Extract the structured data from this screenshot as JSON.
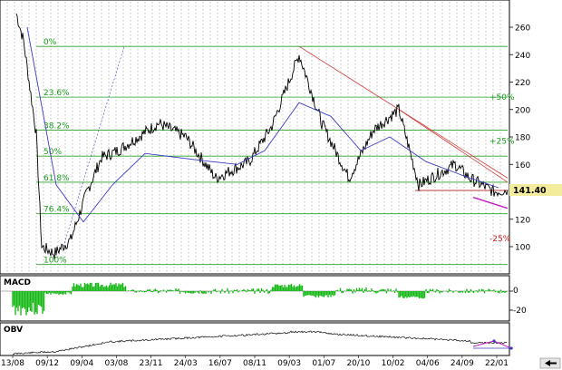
{
  "chart_data": {
    "type": "line",
    "last_price": "141.40",
    "price_axis": {
      "ticks": [
        "260",
        "240",
        "220",
        "200",
        "180",
        "160",
        "140",
        "120",
        "100"
      ]
    },
    "date_labels": [
      "13/08",
      "09/12",
      "09/04",
      "03/08",
      "23/11",
      "24/03",
      "16/07",
      "08/11",
      "09/03",
      "01/07",
      "20/10",
      "10/02",
      "04/06",
      "24/09",
      "22/01"
    ],
    "fib_levels": [
      {
        "label": "0%",
        "value": 246
      },
      {
        "label": "23.6%",
        "value": 209
      },
      {
        "label": "38.2%",
        "value": 185
      },
      {
        "label": "50%",
        "value": 166
      },
      {
        "label": "61.8%",
        "value": 147
      },
      {
        "label": "76.4%",
        "value": 124
      },
      {
        "label": "100%",
        "value": 87
      }
    ],
    "target_labels": [
      {
        "label": "+50%",
        "value": 209,
        "color": "#1a9a1a"
      },
      {
        "label": "+25%",
        "value": 177,
        "color": "#1a9a1a"
      },
      {
        "label": "-25%",
        "value": 106,
        "color": "#c81e1e"
      }
    ],
    "price_series": [
      {
        "date": "13/08",
        "value": 270
      },
      {
        "date": "early Sep",
        "value": 250
      },
      {
        "date": "late Oct",
        "value": 182
      },
      {
        "date": "mid Nov",
        "value": 100
      },
      {
        "date": "09/12",
        "value": 95
      },
      {
        "date": "late Jan",
        "value": 105
      },
      {
        "date": "09/04",
        "value": 140
      },
      {
        "date": "mid May",
        "value": 165
      },
      {
        "date": "03/08",
        "value": 170
      },
      {
        "date": "23/11",
        "value": 190
      },
      {
        "date": "mid Jan",
        "value": 180
      },
      {
        "date": "24/03",
        "value": 150
      },
      {
        "date": "16/07",
        "value": 162
      },
      {
        "date": "08/11",
        "value": 188
      },
      {
        "date": "09/03",
        "value": 240
      },
      {
        "date": "01/07",
        "value": 190
      },
      {
        "date": "20/10",
        "value": 150
      },
      {
        "date": "mid Dec",
        "value": 185
      },
      {
        "date": "10/02",
        "value": 200
      },
      {
        "date": "04/06",
        "value": 145
      },
      {
        "date": "24/09",
        "value": 160
      },
      {
        "date": "mid Nov",
        "value": 150
      },
      {
        "date": "22/01",
        "value": 140
      },
      {
        "date": "last",
        "value": 141.4
      }
    ],
    "moving_average": [
      {
        "date": "13/08",
        "value": 260
      },
      {
        "date": "09/12",
        "value": 145
      },
      {
        "date": "09/04",
        "value": 118
      },
      {
        "date": "03/08",
        "value": 145
      },
      {
        "date": "23/11",
        "value": 168
      },
      {
        "date": "24/03",
        "value": 163
      },
      {
        "date": "16/07",
        "value": 160
      },
      {
        "date": "08/11",
        "value": 170
      },
      {
        "date": "09/03",
        "value": 205
      },
      {
        "date": "01/07",
        "value": 195
      },
      {
        "date": "20/10",
        "value": 170
      },
      {
        "date": "10/02",
        "value": 180
      },
      {
        "date": "04/06",
        "value": 162
      },
      {
        "date": "24/09",
        "value": 152
      },
      {
        "date": "22/01",
        "value": 143
      }
    ],
    "macd": {
      "label": "MACD",
      "ticks": [
        "0",
        "-20"
      ],
      "histogram_color": "#16b816"
    },
    "obv": {
      "label": "OBV"
    },
    "colors": {
      "price": "#000000",
      "moving_average": "#3c3cc8",
      "fib_lines": "#2aa22a",
      "downtrend_lines": "#d23c3c",
      "support": "#c03c3c",
      "wedge": "#c31fc3",
      "last_price_box": "#f3ec9c"
    }
  }
}
